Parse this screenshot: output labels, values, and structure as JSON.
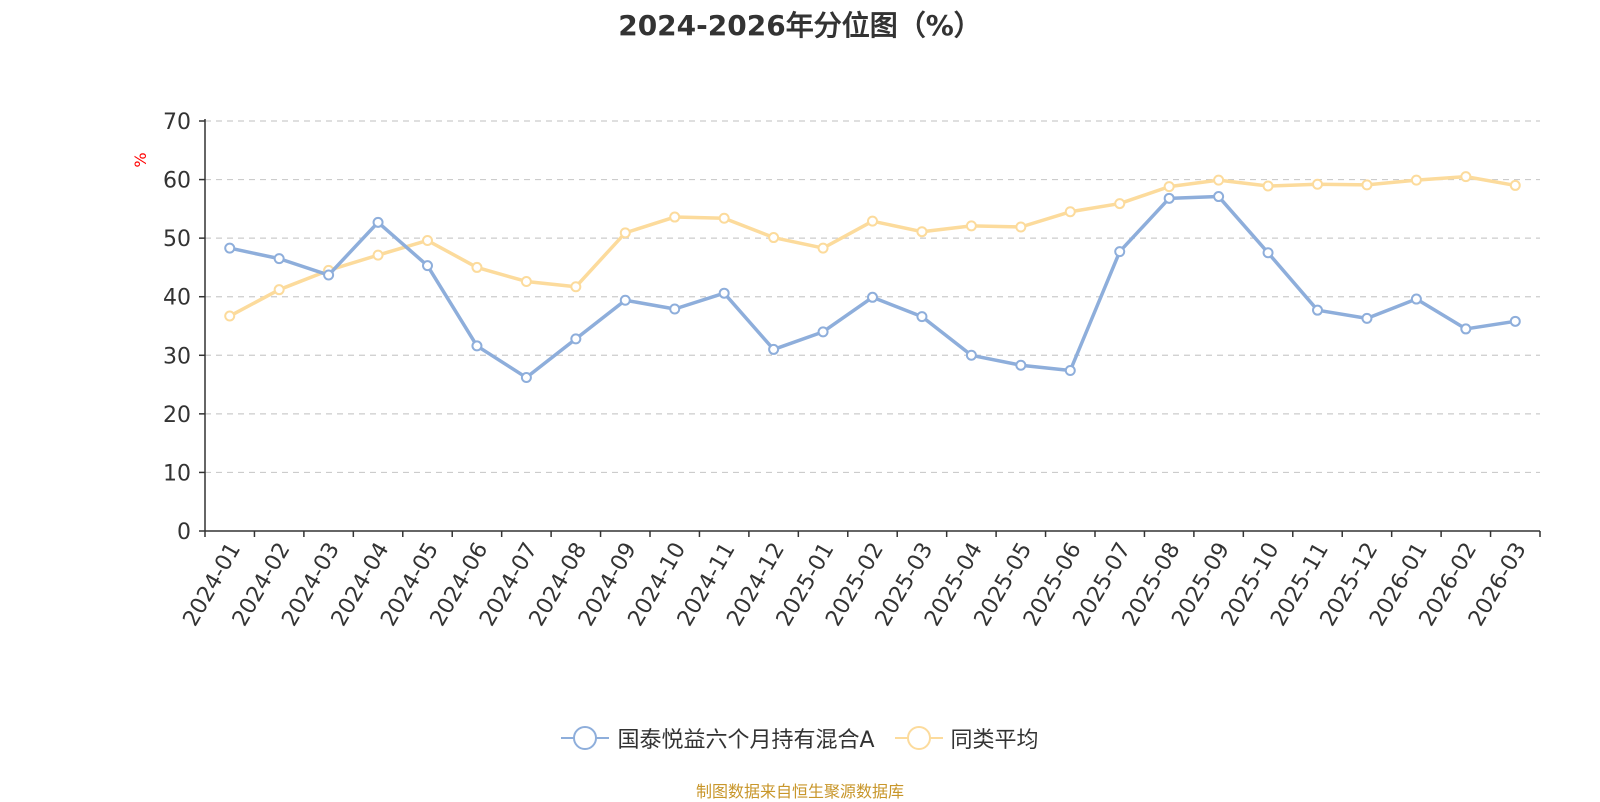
{
  "chart_data": {
    "type": "line",
    "title": "2024-2026年分位图（%）",
    "ylabel": "%",
    "xlabel": "",
    "ylim": [
      0,
      70
    ],
    "yticks": [
      0,
      10,
      20,
      30,
      40,
      50,
      60,
      70
    ],
    "grid": true,
    "legend_position": "bottom",
    "categories": [
      "2024-01",
      "2024-02",
      "2024-03",
      "2024-04",
      "2024-05",
      "2024-06",
      "2024-07",
      "2024-08",
      "2024-09",
      "2024-10",
      "2024-11",
      "2024-12",
      "2025-01",
      "2025-02",
      "2025-03",
      "2025-04",
      "2025-05",
      "2025-06",
      "2025-07",
      "2025-08",
      "2025-09",
      "2025-10",
      "2025-11",
      "2025-12",
      "2026-01",
      "2026-02",
      "2026-03"
    ],
    "series": [
      {
        "name": "国泰悦益六个月持有混合A",
        "color": "#8eaedb",
        "values": [
          48.3,
          46.5,
          43.7,
          52.7,
          45.3,
          31.6,
          26.2,
          32.8,
          39.4,
          37.9,
          40.6,
          31.0,
          34.0,
          39.9,
          36.6,
          30.0,
          28.3,
          27.4,
          47.7,
          56.8,
          57.1,
          47.5,
          37.7,
          36.3,
          39.6,
          34.5,
          35.8
        ]
      },
      {
        "name": "同类平均",
        "color": "#fcdb9c",
        "values": [
          36.7,
          41.2,
          44.5,
          47.1,
          49.6,
          45.0,
          42.6,
          41.7,
          50.9,
          53.6,
          53.4,
          50.1,
          48.3,
          52.9,
          51.1,
          52.1,
          51.9,
          54.5,
          55.9,
          58.8,
          59.9,
          58.9,
          59.2,
          59.1,
          59.9,
          60.5,
          59.0
        ]
      }
    ]
  },
  "source_note": "制图数据来自恒生聚源数据库"
}
